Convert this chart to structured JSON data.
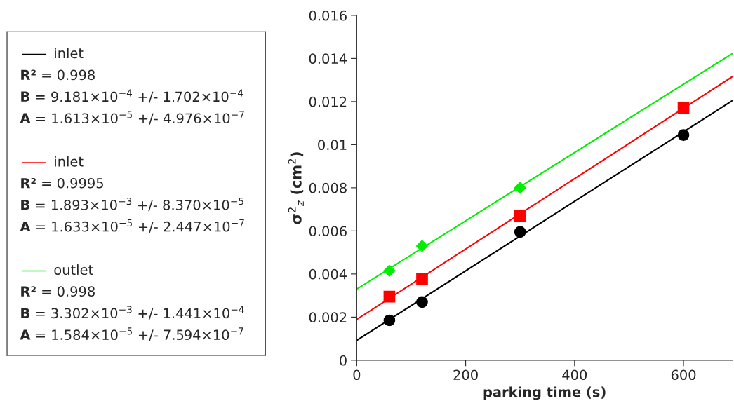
{
  "chart_data": {
    "type": "scatter",
    "xlabel": "parking time (s)",
    "ylabel": "σ$^{2}$$_{z}$ (cm$^{2}$)",
    "xlim": [
      0,
      690
    ],
    "xticks": [
      0,
      200,
      400,
      600
    ],
    "ylim": [
      0,
      0.016
    ],
    "yticks": [
      0,
      0.002,
      0.004,
      0.006,
      0.008,
      0.01,
      0.012,
      0.014,
      0.016
    ],
    "grid": false,
    "legend": "left",
    "series": [
      {
        "type": "line",
        "name": "inlet",
        "color": "#000000",
        "x": [
          0,
          690
        ],
        "values": [
          0.00092,
          0.01205
        ],
        "line_style": "solid"
      },
      {
        "type": "line",
        "name": "inlet",
        "color": "#ff0000",
        "x": [
          0,
          690
        ],
        "values": [
          0.00189,
          0.01316
        ],
        "line_style": "solid"
      },
      {
        "type": "line",
        "name": "outlet",
        "color": "#00ee00",
        "x": [
          0,
          690
        ],
        "values": [
          0.0033,
          0.01423
        ],
        "line_style": "solid"
      },
      {
        "color": "#000000",
        "marker": "circle",
        "x": [
          60,
          120,
          300,
          600
        ],
        "values": [
          0.00185,
          0.0027,
          0.00595,
          0.01045
        ]
      },
      {
        "color": "#ff0000",
        "marker": "square",
        "x": [
          60,
          120,
          300,
          600
        ],
        "values": [
          0.00295,
          0.00378,
          0.0067,
          0.0117
        ]
      },
      {
        "color": "#00ee00",
        "marker": "diamond",
        "x": [
          60,
          120,
          300
        ],
        "values": [
          0.00415,
          0.0053,
          0.008
        ]
      }
    ],
    "annotations": [
      "R² = 0.998",
      "B = 9.181×10$^{−4}$ +/- 1.702×10$^{−4}$",
      "A = 1.613×10$^{−5}$ +/- 4.976×10$^{−7}$",
      "R² = 0.9995",
      "B = 1.893×10$^{−3}$ +/- 8.370×10$^{−5}$",
      "A = 1.633×10$^{−5}$ +/- 2.447×10$^{−7}$",
      "R² = 0.998",
      "B = 3.302×10$^{−3}$ +/- 1.441×10$^{−4}$",
      "A = 1.584×10$^{−5}$ +/- 7.594×10$^{−7}$"
    ]
  }
}
